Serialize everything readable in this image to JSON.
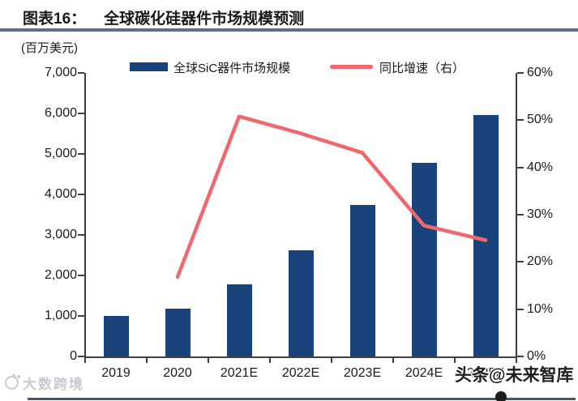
{
  "header": {
    "title_prefix": "图表16：",
    "title": "全球碳化硅器件市场规模预测",
    "unit_label": "(百万美元)"
  },
  "legend": {
    "bar_label": "全球SiC器件市场规模",
    "line_label": "同比增速（右）"
  },
  "chart_data": {
    "type": "bar",
    "title": "全球碳化硅器件市场规模预测",
    "unit": "百万美元",
    "categories": [
      "2019",
      "2020",
      "2021E",
      "2022E",
      "2023E",
      "2024E",
      "2025E"
    ],
    "series": [
      {
        "name": "全球SiC器件市场规模",
        "type": "bar",
        "axis": "left",
        "values": [
          1010,
          1180,
          1780,
          2620,
          3750,
          4790,
          5970
        ]
      },
      {
        "name": "同比增速（右）",
        "type": "line",
        "axis": "right",
        "values": [
          null,
          16.8,
          50.8,
          47.2,
          43.1,
          27.7,
          24.6
        ]
      }
    ],
    "left_axis": {
      "label": "百万美元",
      "min": 0,
      "max": 7000,
      "step": 1000,
      "tick_labels": [
        "0",
        "1,000",
        "2,000",
        "3,000",
        "4,000",
        "5,000",
        "6,000",
        "7,000"
      ]
    },
    "right_axis": {
      "label": "同比增速",
      "min": 0,
      "max": 60,
      "step": 10,
      "tick_labels": [
        "0%",
        "10%",
        "20%",
        "30%",
        "40%",
        "50%",
        "60%"
      ]
    },
    "grid": false,
    "legend_position": "top"
  },
  "colors": {
    "bar": "#1A437C",
    "line": "#F0686C",
    "title_rule": "#5E7287",
    "axis": "#3F3F3F",
    "text": "#1a1a1a",
    "footer_rule": "#3D5875",
    "watermark_gray": "#c7cbd0"
  },
  "watermarks": {
    "bottom_left": "大数跨境",
    "bottom_right": "头条@未来智库"
  }
}
